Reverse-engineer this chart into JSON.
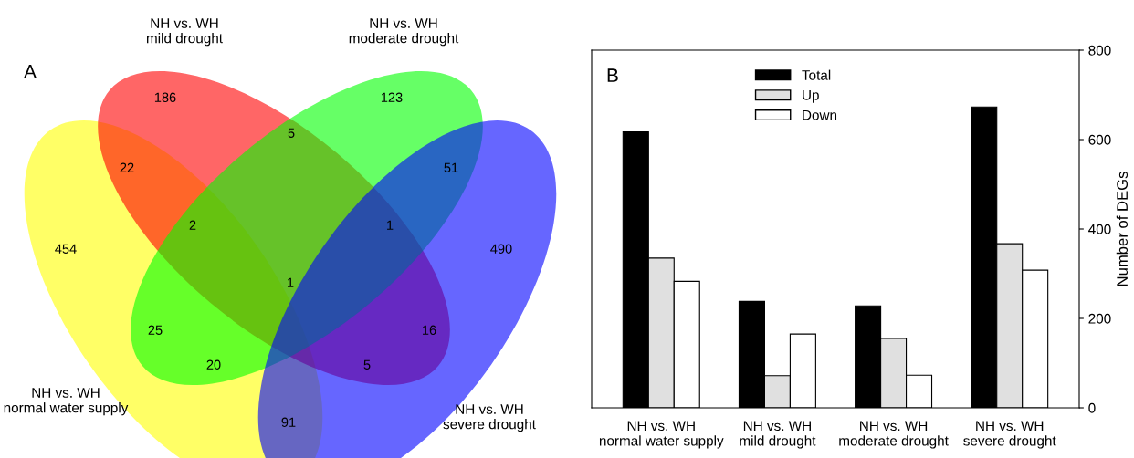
{
  "chart_data": [
    {
      "type": "other",
      "title": "A",
      "annotations": [
        "NH vs. WH\nnormal water supply",
        "NH vs. WH\nmild drought",
        "NH vs. WH\nmoderate drought",
        "NH vs. WH\nsevere drought",
        "454",
        "186",
        "123",
        "490",
        "22",
        "5",
        "51",
        "2",
        "1",
        "1",
        "25",
        "20",
        "16",
        "5",
        "91"
      ]
    },
    {
      "type": "bar",
      "title": "B",
      "ylabel": "Number of DEGs",
      "categories": [
        "NH vs. WH\nnormal water supply",
        "NH vs. WH\nmild drought",
        "NH vs. WH\nmoderate drought",
        "NH vs. WH\nsevere drought"
      ],
      "series": [
        {
          "name": "Total",
          "color": "#000000",
          "values": [
            617,
            238,
            228,
            673
          ]
        },
        {
          "name": "Up",
          "color": "#e0e0e0",
          "values": [
            335,
            72,
            155,
            367
          ]
        },
        {
          "name": "Down",
          "color": "#ffffff",
          "values": [
            283,
            165,
            73,
            308
          ]
        }
      ],
      "ylim": [
        0,
        800
      ],
      "yticks": [
        0,
        200,
        400,
        600,
        800
      ],
      "legend": "top"
    }
  ]
}
